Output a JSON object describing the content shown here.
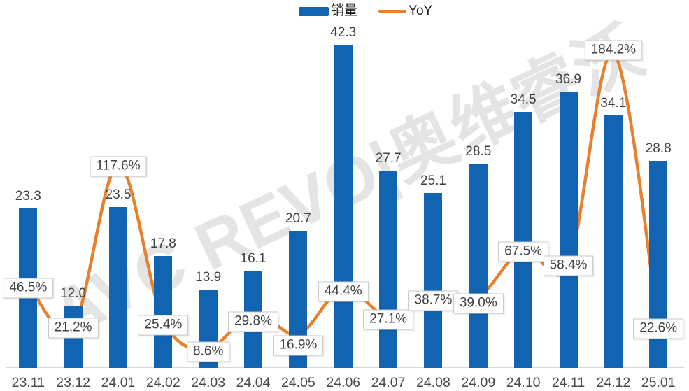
{
  "watermark_text": "AVC REVO|奥维睿沃",
  "legend": {
    "sales_label": "销量",
    "yoy_label": "YoY"
  },
  "colors": {
    "bar_blue": "#1264B2",
    "line_orange": "#E8812D",
    "label_text": "#404040",
    "axis_line_gray": "#D6D6D6",
    "yoy_box_border": "#C8C8C8",
    "yoy_box_bg": "#FFFFFF",
    "watermark_gray": "#CFCFCF"
  },
  "chart_data": {
    "type": "bar+line",
    "title": "",
    "categories": [
      "23.11",
      "23.12",
      "24.01",
      "24.02",
      "24.03",
      "24.04",
      "24.05",
      "24.06",
      "24.07",
      "24.08",
      "24.09",
      "24.10",
      "24.11",
      "24.12",
      "25.01"
    ],
    "series": [
      {
        "name": "销量",
        "type": "bar",
        "color": "#1264B2",
        "values": [
          23.3,
          12.0,
          23.5,
          17.8,
          13.9,
          16.1,
          20.7,
          42.3,
          27.7,
          25.1,
          28.5,
          34.5,
          36.9,
          34.1,
          28.8
        ],
        "labels": [
          "23.3",
          "12.0",
          "23.5",
          "17.8",
          "13.9",
          "16.1",
          "20.7",
          "42.3",
          "27.7",
          "25.1",
          "28.5",
          "34.5",
          "36.9",
          "34.1",
          "28.8"
        ]
      },
      {
        "name": "YoY",
        "type": "line",
        "color": "#E8812D",
        "unit": "%",
        "values": [
          46.5,
          21.2,
          117.6,
          25.4,
          8.6,
          29.8,
          16.9,
          44.4,
          27.1,
          38.7,
          39.0,
          67.5,
          58.4,
          184.2,
          22.6
        ],
        "labels": [
          "46.5%",
          "21.2%",
          "117.6%",
          "25.4%",
          "8.6%",
          "29.8%",
          "16.9%",
          "44.4%",
          "27.1%",
          "38.7%",
          "39.0%",
          "67.5%",
          "58.4%",
          "184.2%",
          "22.6%"
        ]
      }
    ],
    "layout": {
      "legend_position": "top-center",
      "grid": false,
      "value_axes_visible": false,
      "x_axis_line": true,
      "line_smoothed": true,
      "line_behind_bars": true,
      "yoy_label_dy": [
        5,
        2,
        2,
        8,
        5,
        13,
        16,
        5,
        4,
        5,
        9,
        4,
        2,
        -4,
        6
      ]
    }
  }
}
